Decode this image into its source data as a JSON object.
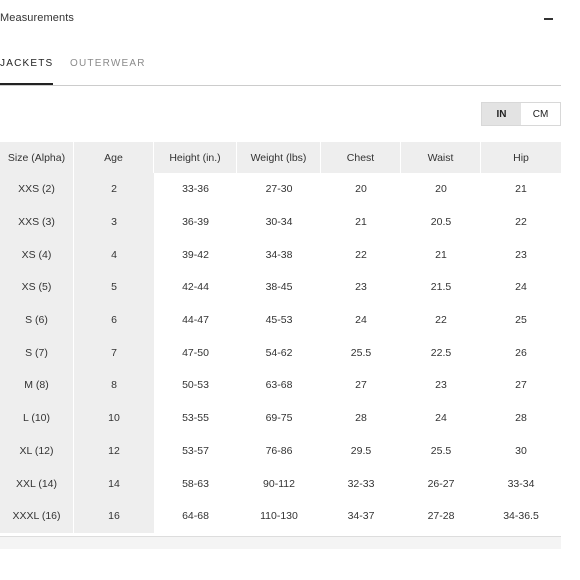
{
  "header": {
    "title": "Measurements"
  },
  "tabs": [
    {
      "label": "JACKETS"
    },
    {
      "label": "OUTERWEAR"
    }
  ],
  "unit_toggle": {
    "options": [
      "IN",
      "CM"
    ],
    "selected": "IN"
  },
  "table": {
    "headers": [
      "Size (Alpha)",
      "Age",
      "Height (in.)",
      "Weight (lbs)",
      "Chest",
      "Waist",
      "Hip"
    ],
    "rows": [
      [
        "XXS (2)",
        "2",
        "33-36",
        "27-30",
        "20",
        "20",
        "21"
      ],
      [
        "XXS (3)",
        "3",
        "36-39",
        "30-34",
        "21",
        "20.5",
        "22"
      ],
      [
        "XS (4)",
        "4",
        "39-42",
        "34-38",
        "22",
        "21",
        "23"
      ],
      [
        "XS (5)",
        "5",
        "42-44",
        "38-45",
        "23",
        "21.5",
        "24"
      ],
      [
        "S (6)",
        "6",
        "44-47",
        "45-53",
        "24",
        "22",
        "25"
      ],
      [
        "S (7)",
        "7",
        "47-50",
        "54-62",
        "25.5",
        "22.5",
        "26"
      ],
      [
        "M (8)",
        "8",
        "50-53",
        "63-68",
        "27",
        "23",
        "27"
      ],
      [
        "L (10)",
        "10",
        "53-55",
        "69-75",
        "28",
        "24",
        "28"
      ],
      [
        "XL (12)",
        "12",
        "53-57",
        "76-86",
        "29.5",
        "25.5",
        "30"
      ],
      [
        "XXL (14)",
        "14",
        "58-63",
        "90-112",
        "32-33",
        "26-27",
        "33-34"
      ],
      [
        "XXXL (16)",
        "16",
        "64-68",
        "110-130",
        "34-37",
        "27-28",
        "34-36.5"
      ]
    ]
  }
}
